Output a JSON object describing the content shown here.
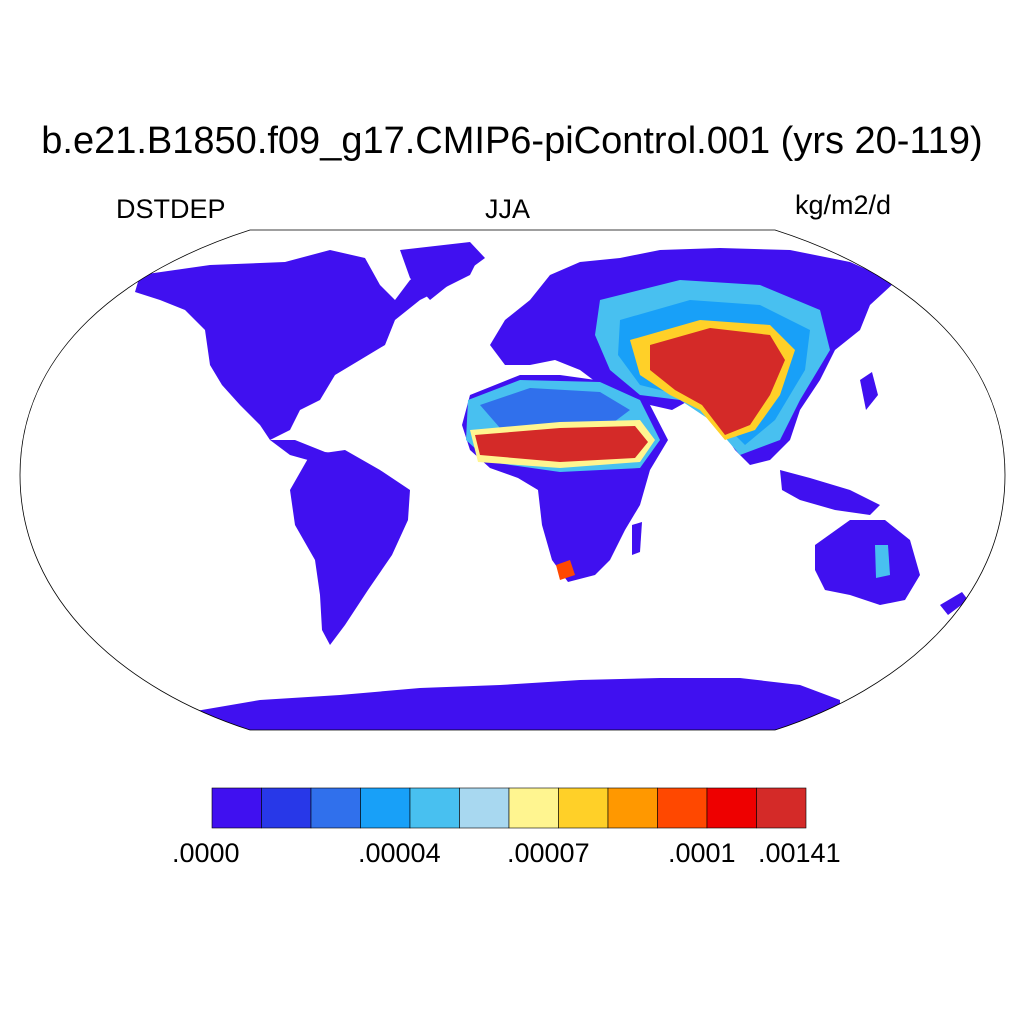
{
  "title": "b.e21.B1850.f09_g17.CMIP6-piControl.001 (yrs 20-119)",
  "left_subtitle": "DSTDEP",
  "center_subtitle": "JJA",
  "right_subtitle": "kg/m2/d",
  "colorbar": {
    "colors": [
      "#4010f0",
      "#2838e8",
      "#3070ec",
      "#18a0f8",
      "#48c0f0",
      "#a8d8f0",
      "#fff590",
      "#ffd028",
      "#ff9800",
      "#ff4800",
      "#ee0000",
      "#d42a28"
    ],
    "labels": [
      ".0000",
      ".00004",
      ".00007",
      ".0001",
      ".00141"
    ]
  },
  "map_colors": {
    "land": "#4010f0",
    "ocean": "#ffffff",
    "coast": "#000000"
  }
}
